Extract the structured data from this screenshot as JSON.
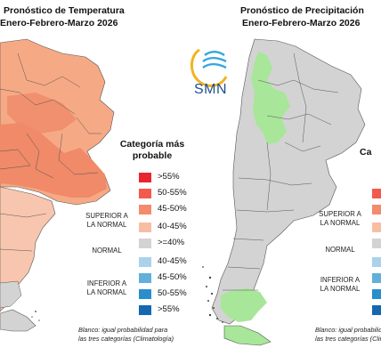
{
  "left_panel": {
    "title_line1": "Pronóstico de Temperatura",
    "title_line2": "Enero-Febrero-Marzo 2026"
  },
  "right_panel": {
    "title_line1": "Pronóstico de Precipitación",
    "title_line2": "Enero-Febrero-Marzo 2026",
    "legend_title_fragment": "Ca",
    "band_superior": "SUPERIOR A\nLA NORMAL",
    "band_normal": "NORMAL",
    "band_inferior": "INFERIOR A\nLA NORMAL",
    "note_line1": "Blanco: igual probabilidad para",
    "note_line2": "las tres categorías (Climatología)"
  },
  "logo": {
    "text": "SMN"
  },
  "legend": {
    "title": "Categoría más probable",
    "items": [
      {
        "label": ">55%",
        "color": "#e8242f"
      },
      {
        "label": "50-55%",
        "color": "#f35a4e"
      },
      {
        "label": "45-50%",
        "color": "#f48a6e"
      },
      {
        "label": "40-45%",
        "color": "#f8bea4"
      },
      {
        "label": ">=40%",
        "color": "#d3d3d3"
      },
      {
        "label": "40-45%",
        "color": "#aad2ea"
      },
      {
        "label": "45-50%",
        "color": "#62afd9"
      },
      {
        "label": "50-55%",
        "color": "#2a8dcc"
      },
      {
        "label": ">55%",
        "color": "#1467b0"
      }
    ],
    "band_superior": "SUPERIOR A\nLA NORMAL",
    "band_normal": "NORMAL",
    "band_inferior": "INFERIOR A\nLA NORMAL",
    "note_line1": "Blanco: igual probabilidad para",
    "note_line2": "las tres categorías (Climatología)"
  },
  "colors": {
    "temp_dark": "#f08a68",
    "temp_mid": "#f6a985",
    "temp_light": "#f8c6ae",
    "normal_gray": "#d3d3d3",
    "green": "#a8e69a",
    "border": "#444444"
  }
}
